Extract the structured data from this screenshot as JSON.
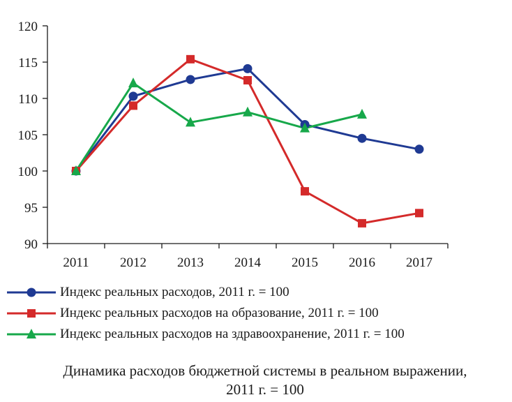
{
  "chart_data": {
    "type": "line",
    "title": "Динамика расходов бюджетной системы в реальном выражении, 2011 г. = 100",
    "title_lines": [
      "Динамика расходов бюджетной системы в реальном выражении,",
      "2011 г. = 100"
    ],
    "xlabel": "",
    "ylabel": "",
    "categories": [
      "2011",
      "2012",
      "2013",
      "2014",
      "2015",
      "2016",
      "2017"
    ],
    "ylim": [
      90,
      120
    ],
    "yticks": [
      90,
      95,
      100,
      105,
      110,
      115,
      120
    ],
    "grid": false,
    "legend_position": "bottom",
    "series": [
      {
        "name": "Индекс реальных расходов, 2011 г. = 100",
        "color": "#1f3a93",
        "marker": "circle",
        "values": [
          100,
          110.3,
          112.6,
          114.1,
          106.4,
          104.5,
          103.0
        ]
      },
      {
        "name": "Индекс реальных расходов на образование, 2011 г. = 100",
        "color": "#d42a2a",
        "marker": "square",
        "values": [
          100,
          109.0,
          115.4,
          112.5,
          97.2,
          92.8,
          94.2
        ]
      },
      {
        "name": "Индекс реальных расходов на здравоохранение, 2011 г. = 100",
        "color": "#17a84a",
        "marker": "triangle",
        "values": [
          100,
          112.1,
          106.7,
          108.1,
          105.9,
          107.8,
          null
        ]
      }
    ]
  }
}
